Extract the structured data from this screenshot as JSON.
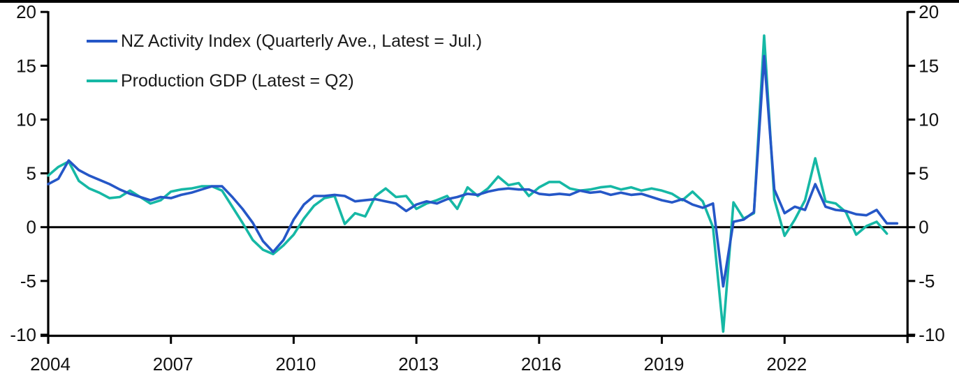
{
  "chart_data": {
    "type": "line",
    "title": "",
    "xlabel": "",
    "ylabel": "",
    "x_axis": {
      "start": 2004.0,
      "step_years": 0.25,
      "unit": "quarter-end decimal year",
      "xlim": [
        2004,
        2025
      ]
    },
    "ylim": [
      -10,
      20
    ],
    "y_ticks": [
      20,
      15,
      10,
      5,
      0,
      -5,
      -10
    ],
    "x_ticks": [
      2004,
      2007,
      2010,
      2013,
      2016,
      2019,
      2022
    ],
    "zero_line": 0,
    "grid": false,
    "legend_position": "top-left-inside",
    "axis_color": "#000000",
    "text_color": "#111111",
    "series": [
      {
        "name": "production-gdp",
        "label": "Production GDP (Latest = Q2)",
        "color": "#16b8a5",
        "first_quarter": "2003Q4",
        "last_quarter": "2024Q2",
        "values": [
          4.8,
          5.6,
          6.1,
          4.3,
          3.6,
          3.2,
          2.7,
          2.8,
          3.4,
          2.8,
          2.2,
          2.5,
          3.3,
          3.5,
          3.6,
          3.8,
          3.8,
          3.4,
          1.9,
          0.4,
          -1.2,
          -2.1,
          -2.5,
          -1.7,
          -0.7,
          0.8,
          2.0,
          2.7,
          2.9,
          0.3,
          1.3,
          1.0,
          2.9,
          3.6,
          2.8,
          2.9,
          1.7,
          2.2,
          2.5,
          2.9,
          1.7,
          3.7,
          2.9,
          3.6,
          4.7,
          3.9,
          4.1,
          2.9,
          3.7,
          4.2,
          4.2,
          3.6,
          3.4,
          3.5,
          3.7,
          3.8,
          3.5,
          3.7,
          3.4,
          3.6,
          3.4,
          3.1,
          2.5,
          3.3,
          2.4,
          0.0,
          -9.7,
          2.3,
          0.8,
          1.3,
          17.8,
          2.6,
          -0.8,
          0.7,
          2.5,
          6.4,
          2.4,
          2.2,
          1.4,
          -0.7,
          0.1,
          0.5,
          -0.6
        ]
      },
      {
        "name": "nz-activity-index",
        "label": "NZ Activity Index (Quarterly Ave., Latest = Jul.)",
        "color": "#2557c7",
        "first_quarter": "2003Q4",
        "last_quarter": "2024Q3 (Jul.)",
        "values": [
          4.0,
          4.5,
          6.2,
          5.3,
          4.8,
          4.4,
          4.0,
          3.5,
          3.1,
          2.8,
          2.5,
          2.8,
          2.7,
          3.0,
          3.2,
          3.5,
          3.8,
          3.8,
          2.8,
          1.7,
          0.4,
          -1.3,
          -2.3,
          -1.2,
          0.7,
          2.1,
          2.9,
          2.9,
          3.0,
          2.9,
          2.4,
          2.5,
          2.6,
          2.4,
          2.2,
          1.5,
          2.1,
          2.4,
          2.2,
          2.6,
          2.8,
          3.1,
          3.0,
          3.3,
          3.5,
          3.6,
          3.5,
          3.5,
          3.1,
          3.0,
          3.1,
          3.0,
          3.4,
          3.2,
          3.3,
          3.0,
          3.2,
          3.0,
          3.1,
          2.8,
          2.5,
          2.3,
          2.6,
          2.1,
          1.8,
          2.2,
          -5.5,
          0.5,
          0.7,
          1.4,
          15.9,
          3.5,
          1.3,
          1.9,
          1.6,
          4.0,
          1.9,
          1.6,
          1.5,
          1.2,
          1.1,
          1.6,
          0.35,
          0.35
        ]
      }
    ]
  },
  "legend": {
    "item_blue": "NZ Activity Index (Quarterly Ave., Latest = Jul.)",
    "item_teal": "Production GDP (Latest = Q2)"
  }
}
